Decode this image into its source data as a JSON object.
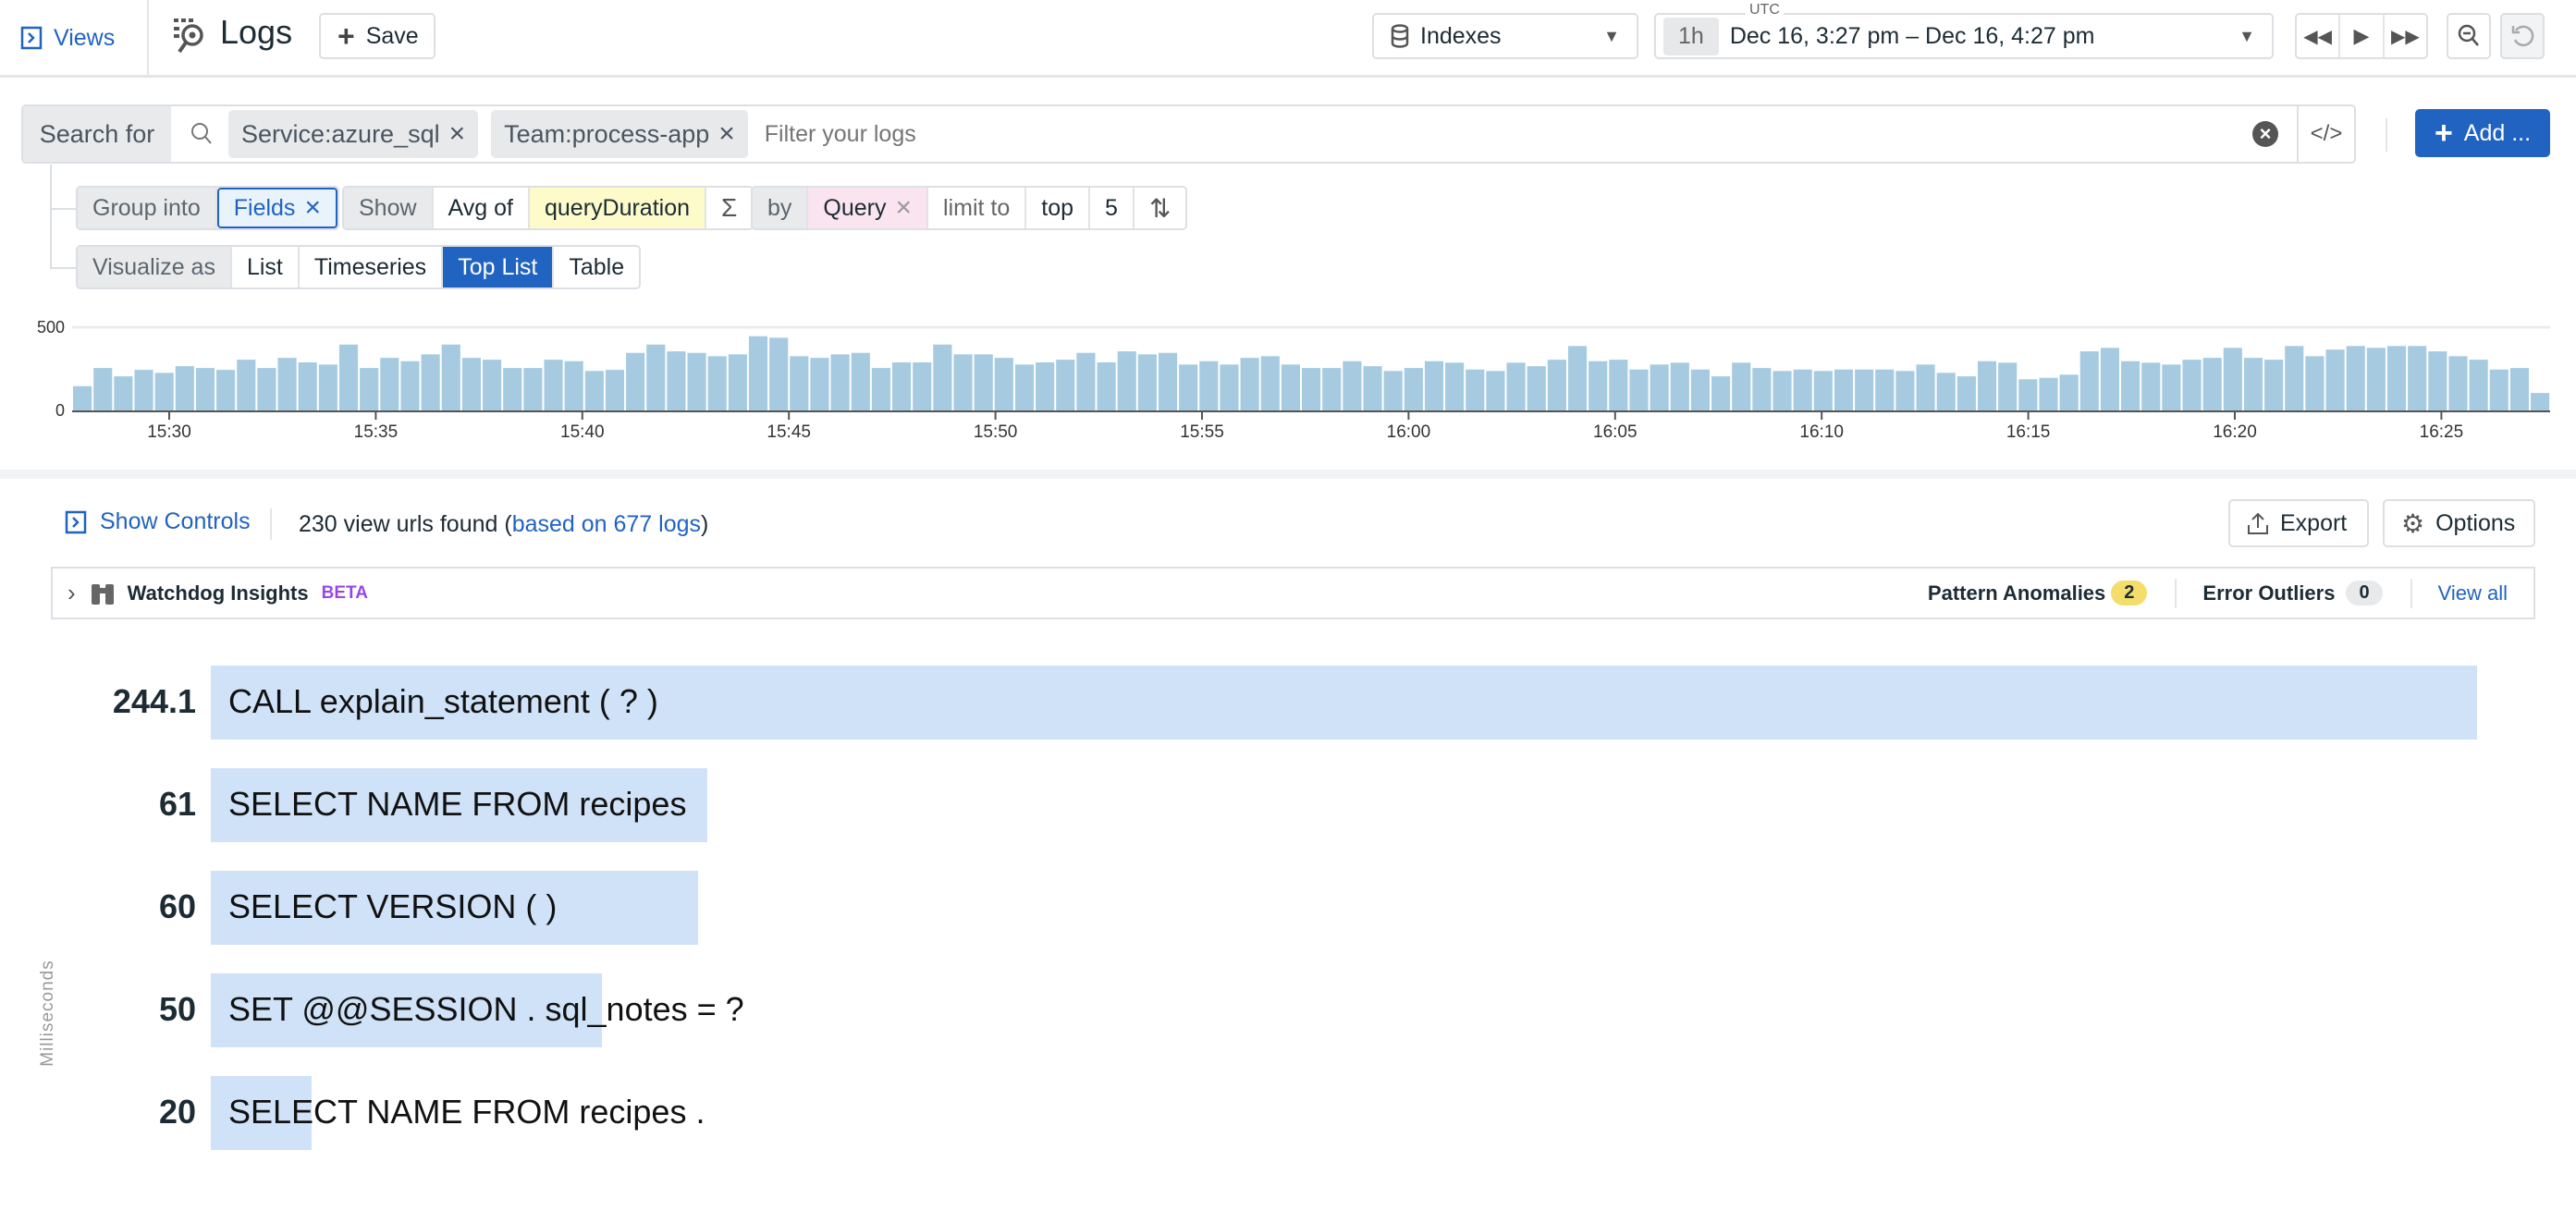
{
  "header": {
    "views_label": "Views",
    "title": "Logs",
    "save_label": "Save",
    "indexes_label": "Indexes",
    "timezone": "UTC",
    "time_preset": "1h",
    "time_range": "Dec 16, 3:27 pm – Dec 16, 4:27 pm"
  },
  "search": {
    "label": "Search for",
    "tags": [
      "Service:azure_sql",
      "Team:process-app"
    ],
    "placeholder": "Filter your logs",
    "add_label": "Add ..."
  },
  "query": {
    "group_into_label": "Group into",
    "group_value": "Fields",
    "show_label": "Show",
    "agg": "Avg of",
    "measure": "queryDuration",
    "by_label": "by",
    "by_value": "Query",
    "limit_label": "limit to",
    "limit_dir": "top",
    "limit_n": "5"
  },
  "visualize": {
    "label": "Visualize as",
    "options": [
      "List",
      "Timeseries",
      "Top List",
      "Table"
    ],
    "selected": "Top List"
  },
  "controls": {
    "show_controls": "Show Controls",
    "summary_prefix": "230 view urls found (",
    "summary_link": "based on 677 logs",
    "summary_suffix": ")",
    "export": "Export",
    "options": "Options"
  },
  "watchdog": {
    "title": "Watchdog Insights",
    "beta": "BETA",
    "pattern_label": "Pattern Anomalies",
    "pattern_count": "2",
    "error_label": "Error Outliers",
    "error_count": "0",
    "view_all": "View all"
  },
  "colors": {
    "accent": "#2163c0",
    "histogram_bar": "#a6cbe0",
    "toplist_bar": "#cfe2f8",
    "beta": "#9747e6",
    "pattern_badge": "#f5dd6b",
    "measure_bg": "#fdfbc9",
    "by_bg": "#f9e4ef"
  },
  "chart_data": [
    {
      "type": "bar",
      "ylim": [
        0,
        500
      ],
      "yticks": [
        "0",
        "500"
      ],
      "grid": true,
      "xticks": [
        "15:30",
        "15:35",
        "15:40",
        "15:45",
        "15:50",
        "15:55",
        "16:00",
        "16:05",
        "16:10",
        "16:15",
        "16:20",
        "16:25"
      ],
      "values": [
        146,
        255,
        205,
        244,
        226,
        266,
        255,
        244,
        305,
        255,
        316,
        289,
        276,
        396,
        255,
        316,
        296,
        337,
        396,
        316,
        305,
        255,
        255,
        305,
        296,
        237,
        244,
        346,
        396,
        355,
        346,
        326,
        337,
        446,
        437,
        326,
        316,
        337,
        346,
        255,
        289,
        289,
        396,
        337,
        337,
        316,
        276,
        289,
        305,
        346,
        289,
        355,
        337,
        346,
        276,
        296,
        276,
        316,
        326,
        276,
        255,
        255,
        296,
        266,
        237,
        255,
        296,
        287,
        246,
        237,
        287,
        266,
        305,
        387,
        296,
        305,
        246,
        276,
        287,
        246,
        205,
        287,
        255,
        237,
        246,
        237,
        246,
        246,
        246,
        237,
        276,
        226,
        205,
        296,
        287,
        187,
        196,
        215,
        355,
        376,
        296,
        287,
        276,
        305,
        316,
        376,
        316,
        305,
        387,
        326,
        366,
        387,
        376,
        387,
        387,
        355,
        326,
        305,
        246,
        255,
        105
      ]
    },
    {
      "type": "bar",
      "orientation": "horizontal",
      "ylabel": "Milliseconds",
      "categories": [
        "CALL explain_statement ( ? )",
        "SELECT NAME FROM recipes",
        "SELECT VERSION ( )",
        "SET @@SESSION . sql_notes = ?",
        "SELECT NAME FROM recipes ."
      ],
      "values": [
        244.1,
        61,
        60,
        50,
        20
      ],
      "value_labels": [
        "244.1",
        "61",
        "60",
        "50",
        "20"
      ]
    }
  ]
}
